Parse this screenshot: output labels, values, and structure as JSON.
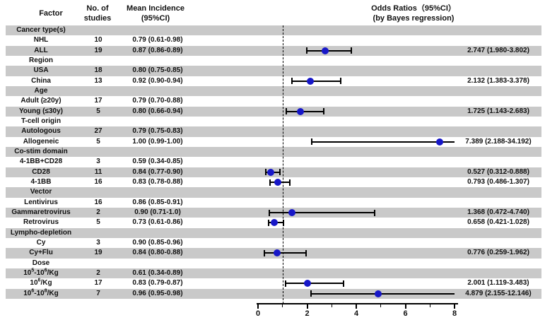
{
  "chart_data": {
    "type": "scatter",
    "subtype": "forest-plot",
    "title": "Odds Ratios（95%CI）",
    "subtitle": "(by Bayes regression)",
    "header": {
      "factor": "Factor",
      "studies": [
        "No. of",
        "studies"
      ],
      "mean": [
        "Mean Incidence",
        "(95%CI)"
      ],
      "odds": [
        "Odds Ratios（95%CI）",
        "(by Bayes regression)"
      ]
    },
    "x_axis": {
      "min": 0,
      "max": 8,
      "major_ticks": [
        0,
        2,
        4,
        6,
        8
      ],
      "minor_ticks": [
        1,
        3,
        5,
        7
      ],
      "reference_line": 1
    },
    "colors": {
      "band": "#c9c9c9",
      "marker": "#1717c8",
      "error_bar": "#000000"
    },
    "rows": [
      {
        "factor": "Cancer type(s)",
        "category": true
      },
      {
        "factor": "NHL",
        "n": "10",
        "mean": "0.79 (0.61-0.98)"
      },
      {
        "factor": "ALL",
        "n": "19",
        "mean": "0.87 (0.86-0.89)",
        "or": 2.747,
        "or_lo": 1.98,
        "or_hi": 3.802,
        "or_text": "2.747 (1.980-3.802)"
      },
      {
        "factor": "Region",
        "category": true
      },
      {
        "factor": "USA",
        "n": "18",
        "mean": "0.80 (0.75-0.85)"
      },
      {
        "factor": "China",
        "n": "13",
        "mean": "0.92 (0.90-0.94)",
        "or": 2.132,
        "or_lo": 1.383,
        "or_hi": 3.378,
        "or_text": "2.132 (1.383-3.378)"
      },
      {
        "factor": "Age",
        "category": true
      },
      {
        "factor": "Adult (≥20y)",
        "n": "17",
        "mean": "0.79 (0.70-0.88)"
      },
      {
        "factor": "Young (≤30y)",
        "n": "5",
        "mean": "0.80 (0.66-0.94)",
        "or": 1.725,
        "or_lo": 1.143,
        "or_hi": 2.683,
        "or_text": "1.725 (1.143-2.683)"
      },
      {
        "factor": "T-cell origin",
        "category": true
      },
      {
        "factor": "Autologous",
        "n": "27",
        "mean": "0.79 (0.75-0.83)"
      },
      {
        "factor": "Allogeneic",
        "n": "5",
        "mean": "1.00 (0.99-1.00)",
        "or": 7.389,
        "or_lo": 2.188,
        "or_hi": 34.192,
        "or_text": "7.389 (2.188-34.192)"
      },
      {
        "factor": "Co-stim domain",
        "category": true
      },
      {
        "factor": "4-1BB+CD28",
        "n": "3",
        "mean": "0.59 (0.34-0.85)"
      },
      {
        "factor": "CD28",
        "n": "11",
        "mean": "0.84 (0.77-0.90)",
        "or": 0.527,
        "or_lo": 0.312,
        "or_hi": 0.888,
        "or_text": "0.527 (0.312-0.888)"
      },
      {
        "factor": "4-1BB",
        "n": "16",
        "mean": "0.83 (0.78-0.88)",
        "or": 0.793,
        "or_lo": 0.486,
        "or_hi": 1.307,
        "or_text": "0.793 (0.486-1.307)"
      },
      {
        "factor": "Vector",
        "category": true
      },
      {
        "factor": "Lentivirus",
        "n": "16",
        "mean": "0.86 (0.85-0.91)"
      },
      {
        "factor": "Gammaretrovirus",
        "n": "2",
        "mean": "0.90 (0.71-1.0)",
        "or": 1.368,
        "or_lo": 0.472,
        "or_hi": 4.74,
        "or_text": "1.368 (0.472-4.740)"
      },
      {
        "factor": "Retrovirus",
        "n": "5",
        "mean": "0.73 (0.61-0.86)",
        "or": 0.658,
        "or_lo": 0.421,
        "or_hi": 1.028,
        "or_text": "0.658 (0.421-1.028)"
      },
      {
        "factor": "Lympho-depletion",
        "category": true
      },
      {
        "factor": "Cy",
        "n": "3",
        "mean": "0.90 (0.85-0.96)"
      },
      {
        "factor": "Cy+Flu",
        "n": "19",
        "mean": "0.84 (0.80-0.88)",
        "or": 0.776,
        "or_lo": 0.259,
        "or_hi": 1.962,
        "or_text": "0.776 (0.259-1.962)"
      },
      {
        "factor": "Dose",
        "category": true
      },
      {
        "factor": "10^5-10^6/Kg",
        "n": "2",
        "mean": "0.61 (0.34-0.89)"
      },
      {
        "factor": "10^6/Kg",
        "n": "17",
        "mean": "0.83 (0.79-0.87)",
        "or": 2.001,
        "or_lo": 1.119,
        "or_hi": 3.483,
        "or_text": "2.001 (1.119-3.483)"
      },
      {
        "factor": "10^6-10^8/Kg",
        "n": "7",
        "mean": "0.96 (0.95-0.98)",
        "or": 4.879,
        "or_lo": 2.155,
        "or_hi": 12.146,
        "or_text": "4.879 (2.155-12.146)"
      }
    ]
  }
}
